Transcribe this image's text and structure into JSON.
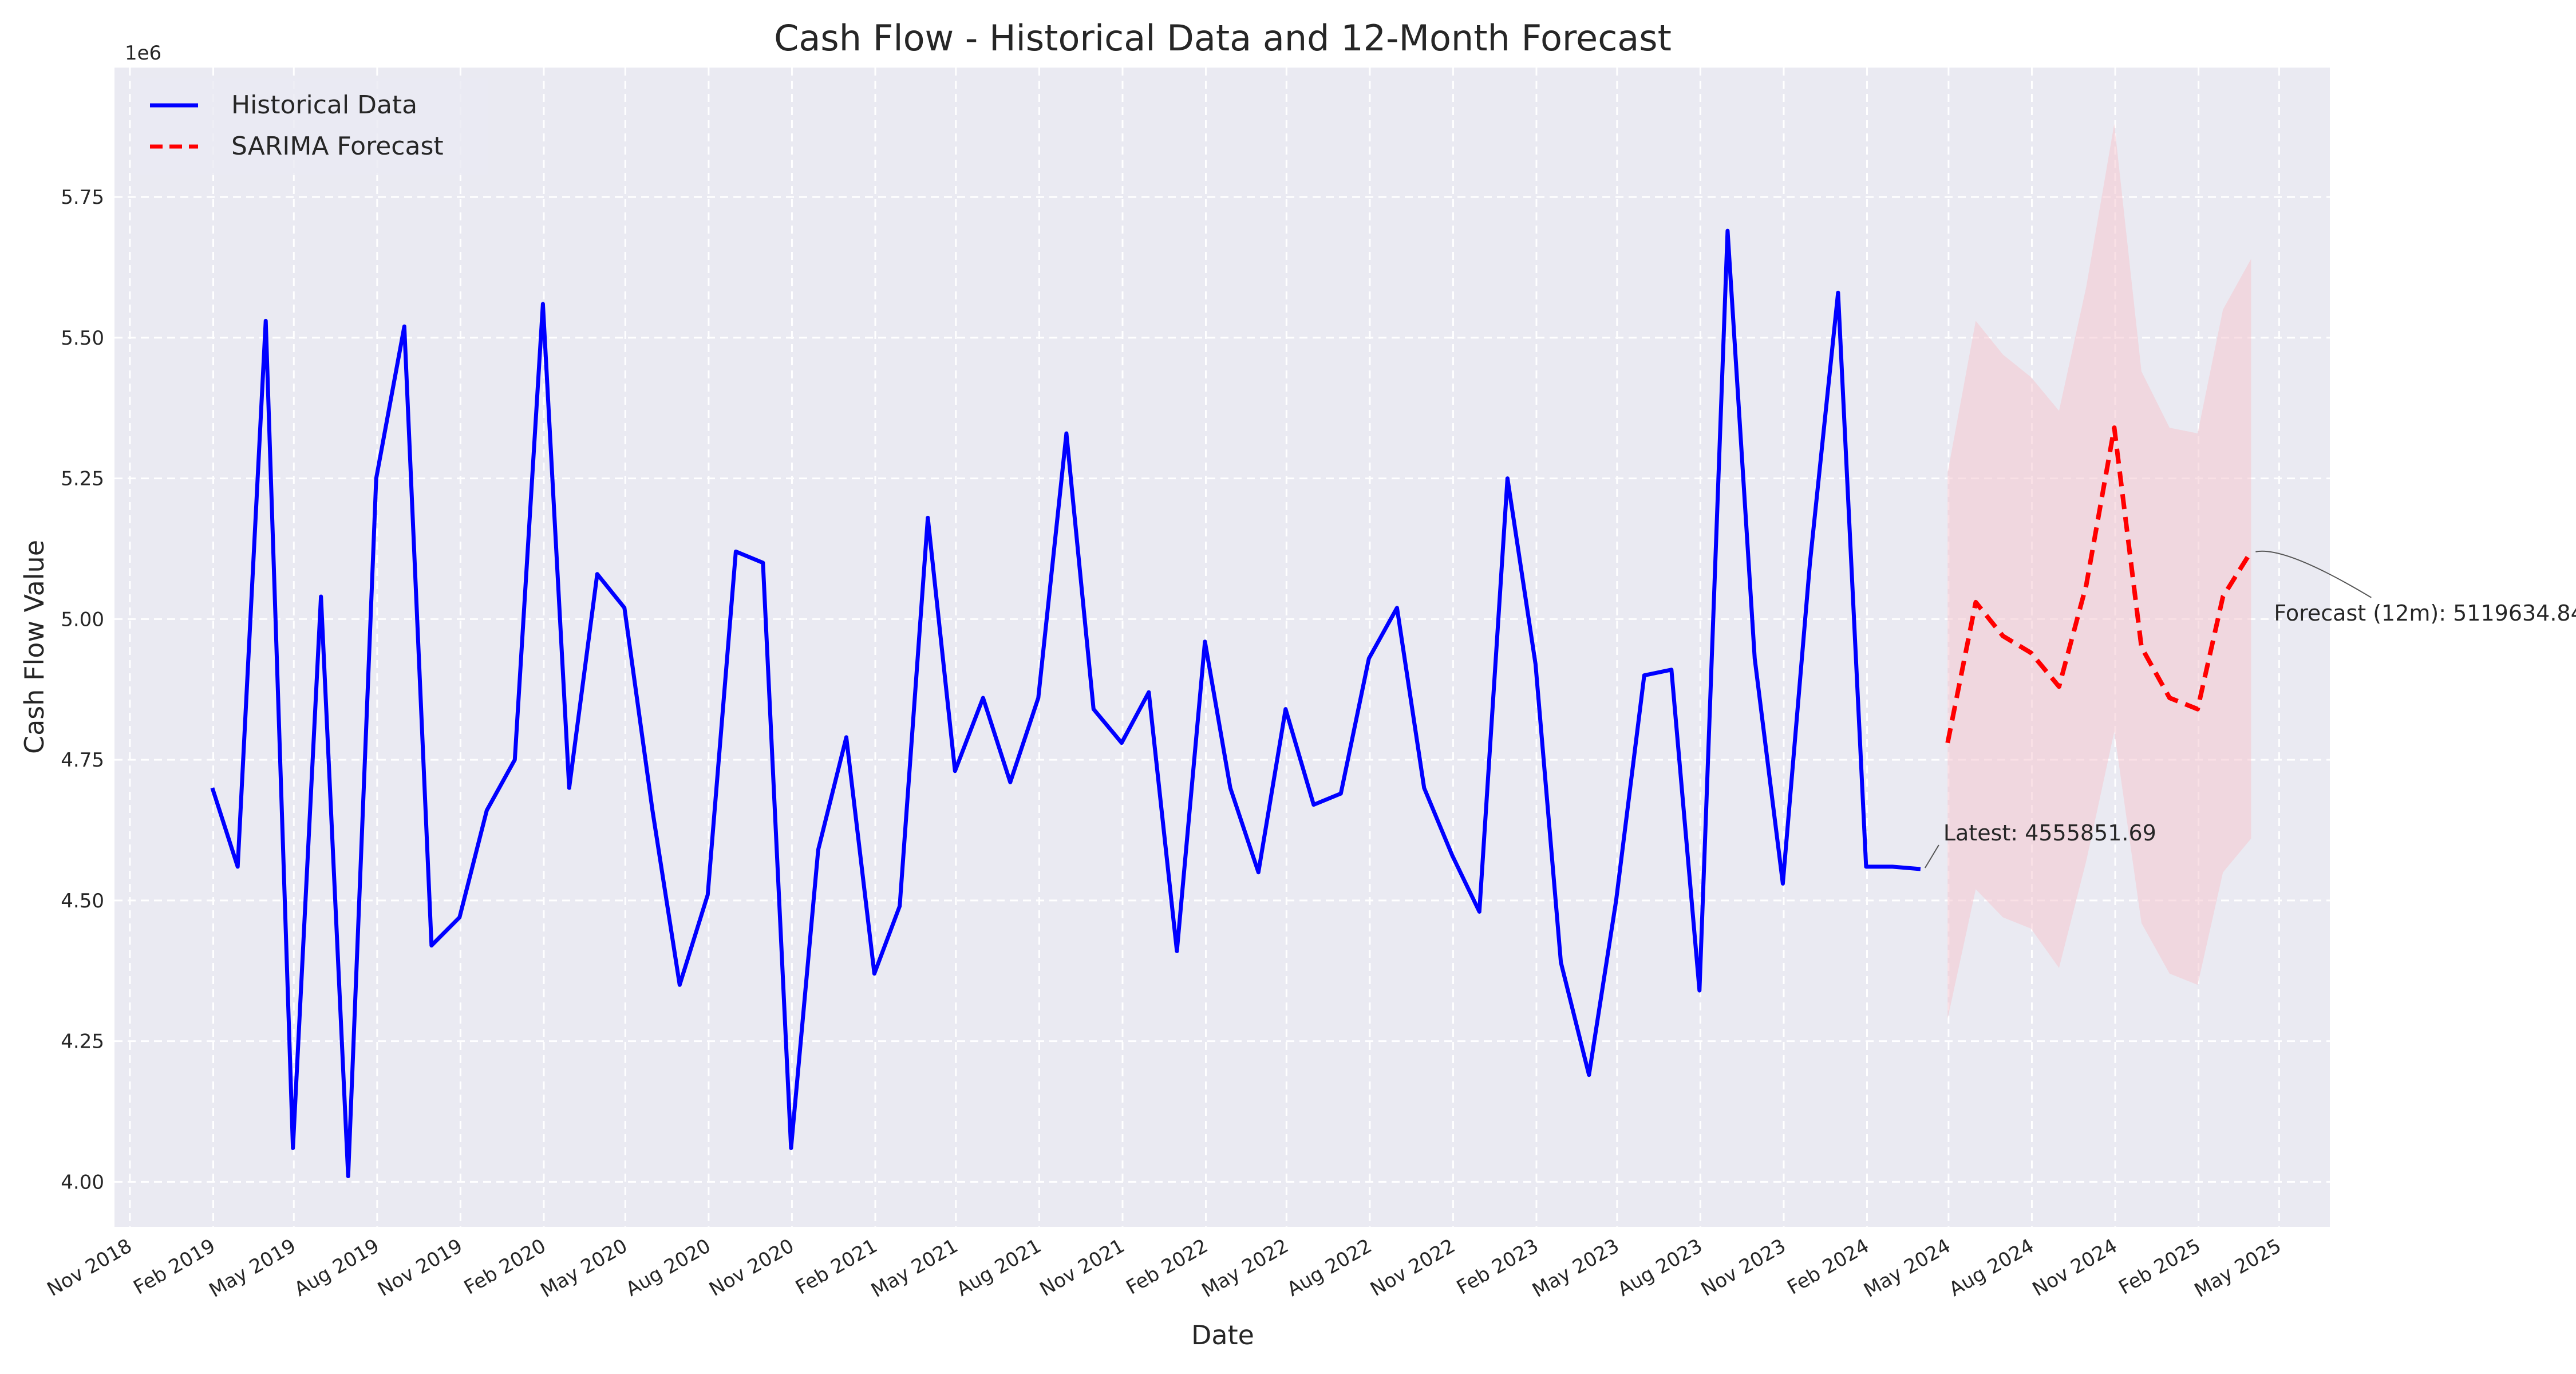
{
  "chart_data": {
    "type": "line",
    "title": "Cash Flow - Historical Data and 12-Month Forecast",
    "xlabel": "Date",
    "ylabel": "Cash Flow Value",
    "y_offset_label": "1e6",
    "ylim": [
      3.92,
      5.98
    ],
    "xlim": [
      "2018-10-15",
      "2025-06-26"
    ],
    "y_scale_factor": 1000000,
    "yticks": [
      4.0,
      4.25,
      4.5,
      4.75,
      5.0,
      5.25,
      5.5,
      5.75
    ],
    "ytick_labels": [
      "4.00",
      "4.25",
      "4.50",
      "4.75",
      "5.00",
      "5.25",
      "5.50",
      "5.75"
    ],
    "xticks": [
      "2018-11-01",
      "2019-02-01",
      "2019-05-01",
      "2019-08-01",
      "2019-11-01",
      "2020-02-01",
      "2020-05-01",
      "2020-08-01",
      "2020-11-01",
      "2021-02-01",
      "2021-05-01",
      "2021-08-01",
      "2021-11-01",
      "2022-02-01",
      "2022-05-01",
      "2022-08-01",
      "2022-11-01",
      "2023-02-01",
      "2023-05-01",
      "2023-08-01",
      "2023-11-01",
      "2024-02-01",
      "2024-05-01",
      "2024-08-01",
      "2024-11-01",
      "2025-02-01",
      "2025-05-01"
    ],
    "xtick_labels": [
      "Nov 2018",
      "Feb 2019",
      "May 2019",
      "Aug 2019",
      "Nov 2019",
      "Feb 2020",
      "May 2020",
      "Aug 2020",
      "Nov 2020",
      "Feb 2021",
      "May 2021",
      "Aug 2021",
      "Nov 2021",
      "Feb 2022",
      "May 2022",
      "Aug 2022",
      "Nov 2022",
      "Feb 2023",
      "May 2023",
      "Aug 2023",
      "Nov 2023",
      "Feb 2024",
      "May 2024",
      "Aug 2024",
      "Nov 2024",
      "Feb 2025",
      "May 2025"
    ],
    "grid": true,
    "legend_position": "top-left",
    "series": [
      {
        "name": "Historical Data",
        "color": "#0000ff",
        "style": "solid",
        "x": [
          "2019-01-31",
          "2019-02-28",
          "2019-03-31",
          "2019-04-30",
          "2019-05-31",
          "2019-06-30",
          "2019-07-31",
          "2019-08-31",
          "2019-09-30",
          "2019-10-31",
          "2019-11-30",
          "2019-12-31",
          "2020-01-31",
          "2020-02-29",
          "2020-03-31",
          "2020-04-30",
          "2020-05-31",
          "2020-06-30",
          "2020-07-31",
          "2020-08-31",
          "2020-09-30",
          "2020-10-31",
          "2020-11-30",
          "2020-12-31",
          "2021-01-31",
          "2021-02-28",
          "2021-03-31",
          "2021-04-30",
          "2021-05-31",
          "2021-06-30",
          "2021-07-31",
          "2021-08-31",
          "2021-09-30",
          "2021-10-31",
          "2021-11-30",
          "2021-12-31",
          "2022-01-31",
          "2022-02-28",
          "2022-03-31",
          "2022-04-30",
          "2022-05-31",
          "2022-06-30",
          "2022-07-31",
          "2022-08-31",
          "2022-09-30",
          "2022-10-31",
          "2022-11-30",
          "2022-12-31",
          "2023-01-31",
          "2023-02-28",
          "2023-03-31",
          "2023-04-30",
          "2023-05-31",
          "2023-06-30",
          "2023-07-31",
          "2023-08-31",
          "2023-09-30",
          "2023-10-31",
          "2023-11-30",
          "2023-12-31",
          "2024-01-31",
          "2024-02-29",
          "2024-03-31"
        ],
        "values": [
          4.7,
          4.56,
          5.53,
          4.06,
          5.04,
          4.01,
          5.25,
          5.52,
          4.42,
          4.47,
          4.66,
          4.75,
          5.56,
          4.7,
          5.08,
          5.02,
          4.66,
          4.35,
          4.51,
          5.12,
          5.1,
          4.06,
          4.59,
          4.79,
          4.37,
          4.49,
          5.18,
          4.73,
          4.86,
          4.71,
          4.86,
          5.33,
          4.84,
          4.78,
          4.87,
          4.41,
          4.96,
          4.7,
          4.55,
          4.84,
          4.67,
          4.69,
          4.93,
          5.02,
          4.7,
          4.58,
          4.48,
          5.25,
          4.92,
          4.39,
          4.19,
          4.5,
          4.9,
          4.91,
          4.34,
          5.69,
          4.93,
          4.53,
          5.1,
          5.58,
          4.56,
          4.56,
          4.5558
        ]
      },
      {
        "name": "SARIMA Forecast",
        "color": "#ff0000",
        "style": "dashed",
        "x": [
          "2024-04-30",
          "2024-05-31",
          "2024-06-30",
          "2024-07-31",
          "2024-08-31",
          "2024-09-30",
          "2024-10-31",
          "2024-11-30",
          "2024-12-31",
          "2025-01-31",
          "2025-02-28",
          "2025-03-31"
        ],
        "values": [
          4.78,
          5.03,
          4.97,
          4.94,
          4.88,
          5.06,
          5.34,
          4.95,
          4.86,
          4.84,
          5.04,
          5.12
        ],
        "lower": [
          4.29,
          4.52,
          4.47,
          4.45,
          4.38,
          4.57,
          4.8,
          4.46,
          4.37,
          4.35,
          4.55,
          4.61
        ],
        "upper": [
          5.26,
          5.53,
          5.47,
          5.43,
          5.37,
          5.59,
          5.88,
          5.44,
          5.34,
          5.33,
          5.55,
          5.64
        ]
      }
    ],
    "annotations": [
      {
        "text": "Latest: 4555851.69",
        "point_x": "2024-03-31",
        "point_y": 4.5558
      },
      {
        "text": "Forecast (12m): 5119634.84",
        "point_x": "2025-03-31",
        "point_y": 5.1196
      }
    ],
    "colors": {
      "plot_background": "#eaeaf2",
      "grid": "#ffffff",
      "band": "#f4c6cf",
      "text": "#262626"
    }
  }
}
